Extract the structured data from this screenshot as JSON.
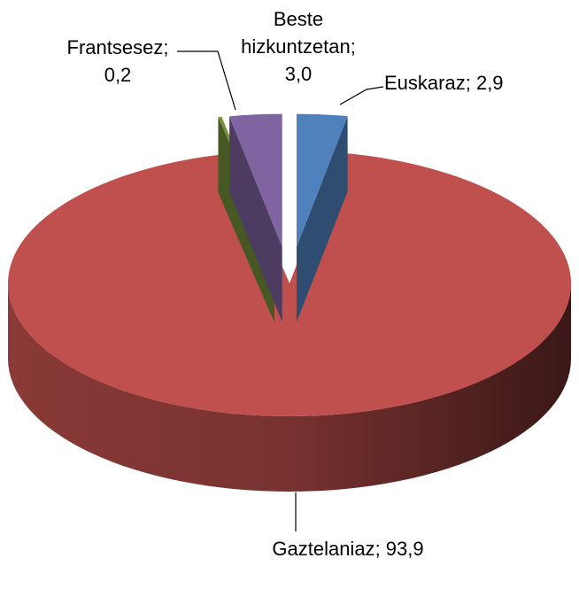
{
  "chart_data": {
    "type": "pie3d",
    "categories": [
      "Euskaraz",
      "Gaztelaniaz",
      "Frantsesez",
      "Beste hizkuntzetan"
    ],
    "values": [
      2.9,
      93.9,
      0.2,
      3.0
    ],
    "value_labels": [
      "2,9",
      "93,9",
      "0,2",
      "3,0"
    ],
    "label_separator": "; ",
    "colors": [
      "#4f81bd",
      "#c0504d",
      "#77933c",
      "#8064a2"
    ],
    "exploded": [
      true,
      false,
      true,
      true
    ]
  }
}
